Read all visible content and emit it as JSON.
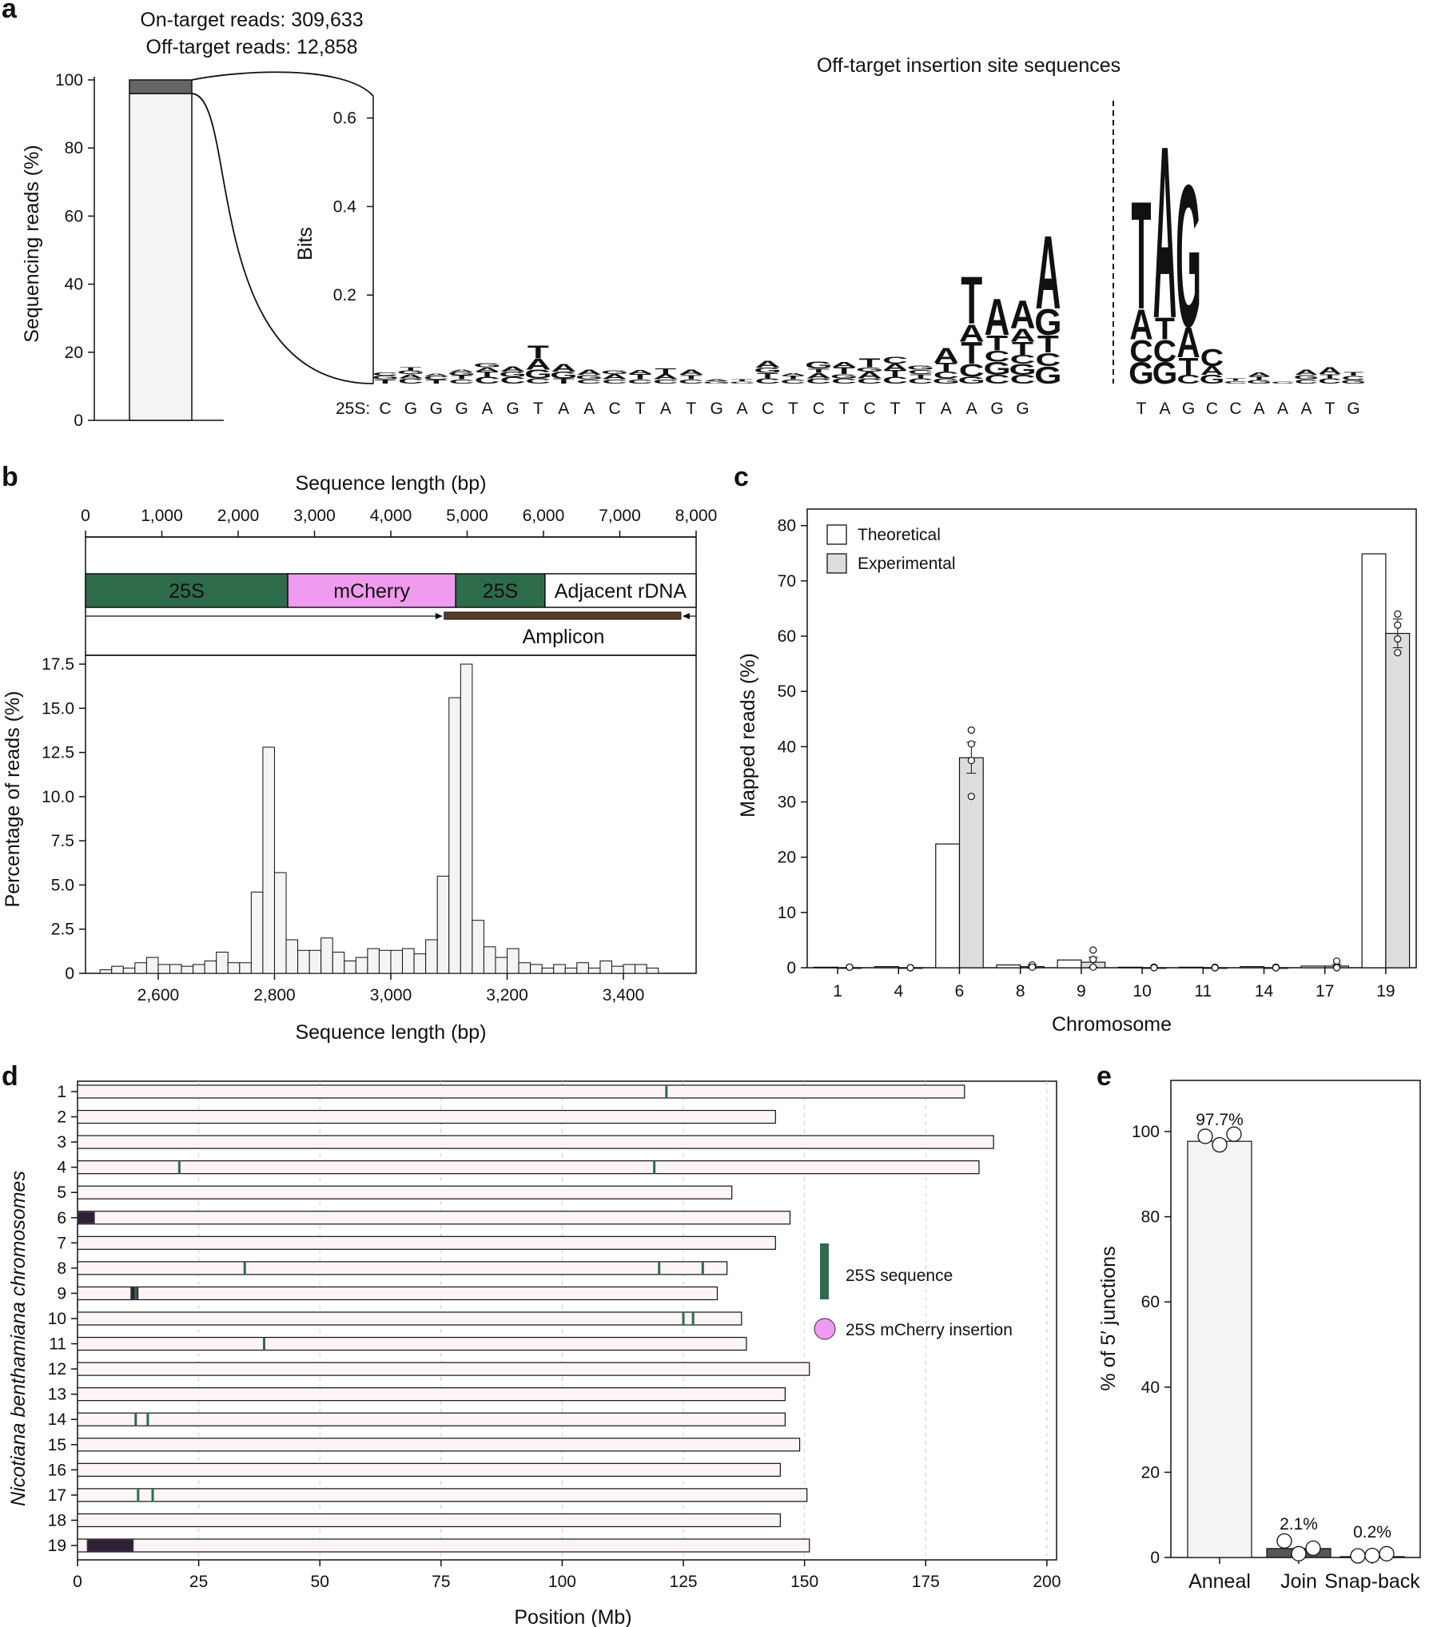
{
  "panels": {
    "a": {
      "letter": "a",
      "on_target_label": "On-target reads: 309,633",
      "off_target_label": "Off-target reads: 12,858",
      "logo_title": "Off-target insertion site sequences",
      "ref_prefix": "25S:",
      "colors": {
        "A": "#f7c24a",
        "C": "#5aa6d9",
        "G": "#4f61db",
        "T": "#ef6f6c"
      }
    },
    "b": {
      "letter": "b"
    },
    "c": {
      "letter": "c"
    },
    "d": {
      "letter": "d"
    },
    "e": {
      "letter": "e"
    }
  },
  "chart_data": [
    {
      "id": "a-stacked-bar",
      "type": "bar",
      "ylabel": "Sequencing reads (%)",
      "ylim": [
        0,
        100
      ],
      "yticks": [
        0,
        20,
        40,
        60,
        80,
        100
      ],
      "series": [
        {
          "name": "On-target reads",
          "values": [
            96.0
          ]
        },
        {
          "name": "Off-target reads",
          "values": [
            4.0
          ]
        }
      ],
      "colors": {
        "on_target": "#f4f4f4",
        "off_target": "#666666"
      }
    },
    {
      "id": "a-sequence-logo",
      "type": "logo",
      "title": "Off-target insertion site sequences",
      "ylabel": "Bits",
      "ylim": [
        0,
        0.65
      ],
      "yticks": [
        "0.2",
        "0.4",
        "0.6"
      ],
      "reference_left": [
        "C",
        "G",
        "G",
        "G",
        "A",
        "G",
        "T",
        "A",
        "A",
        "C",
        "T",
        "A",
        "T",
        "G",
        "A",
        "C",
        "T",
        "C",
        "T",
        "C",
        "T",
        "T",
        "A",
        "A",
        "G",
        "G"
      ],
      "reference_right": [
        "T",
        "A",
        "G",
        "C",
        "C",
        "A",
        "A",
        "A",
        "T",
        "G"
      ],
      "stacks_left": [
        [
          [
            "T",
            0.01
          ],
          [
            "G",
            0.008
          ],
          [
            "C",
            0.007
          ]
        ],
        [
          [
            "C",
            0.012
          ],
          [
            "A",
            0.01
          ],
          [
            "G",
            0.008
          ],
          [
            "T",
            0.007
          ]
        ],
        [
          [
            "T",
            0.009
          ],
          [
            "C",
            0.008
          ],
          [
            "A",
            0.006
          ]
        ],
        [
          [
            "C",
            0.01
          ],
          [
            "T",
            0.009
          ],
          [
            "G",
            0.007
          ],
          [
            "A",
            0.006
          ]
        ],
        [
          [
            "C",
            0.015
          ],
          [
            "T",
            0.012
          ],
          [
            "A",
            0.01
          ],
          [
            "G",
            0.01
          ]
        ],
        [
          [
            "C",
            0.015
          ],
          [
            "G",
            0.012
          ],
          [
            "A",
            0.012
          ]
        ],
        [
          [
            "C",
            0.012
          ],
          [
            "G",
            0.02
          ],
          [
            "A",
            0.025
          ],
          [
            "T",
            0.03
          ]
        ],
        [
          [
            "T",
            0.012
          ],
          [
            "G",
            0.015
          ],
          [
            "A",
            0.018
          ]
        ],
        [
          [
            "C",
            0.01
          ],
          [
            "G",
            0.01
          ],
          [
            "A",
            0.012
          ]
        ],
        [
          [
            "C",
            0.01
          ],
          [
            "A",
            0.012
          ],
          [
            "G",
            0.008
          ]
        ],
        [
          [
            "C",
            0.01
          ],
          [
            "T",
            0.012
          ],
          [
            "A",
            0.01
          ]
        ],
        [
          [
            "C",
            0.01
          ],
          [
            "A",
            0.012
          ],
          [
            "T",
            0.013
          ]
        ],
        [
          [
            "C",
            0.01
          ],
          [
            "T",
            0.01
          ],
          [
            "A",
            0.012
          ]
        ],
        [
          [
            "G",
            0.005
          ],
          [
            "A",
            0.005
          ]
        ],
        [
          [
            "C",
            0.005
          ],
          [
            "T",
            0.005
          ]
        ],
        [
          [
            "C",
            0.012
          ],
          [
            "T",
            0.012
          ],
          [
            "G",
            0.012
          ],
          [
            "A",
            0.015
          ]
        ],
        [
          [
            "C",
            0.01
          ],
          [
            "T",
            0.008
          ],
          [
            "A",
            0.006
          ]
        ],
        [
          [
            "C",
            0.012
          ],
          [
            "A",
            0.012
          ],
          [
            "T",
            0.01
          ],
          [
            "G",
            0.015
          ]
        ],
        [
          [
            "C",
            0.012
          ],
          [
            "G",
            0.01
          ],
          [
            "T",
            0.015
          ],
          [
            "A",
            0.012
          ]
        ],
        [
          [
            "C",
            0.012
          ],
          [
            "A",
            0.015
          ],
          [
            "G",
            0.01
          ],
          [
            "T",
            0.02
          ]
        ],
        [
          [
            "C",
            0.015
          ],
          [
            "T",
            0.015
          ],
          [
            "A",
            0.015
          ],
          [
            "C",
            0.015
          ]
        ],
        [
          [
            "C",
            0.012
          ],
          [
            "T",
            0.01
          ],
          [
            "C",
            0.01
          ],
          [
            "G",
            0.01
          ]
        ],
        [
          [
            "G",
            0.012
          ],
          [
            "C",
            0.015
          ],
          [
            "T",
            0.02
          ],
          [
            "A",
            0.035
          ]
        ],
        [
          [
            "G",
            0.015
          ],
          [
            "C",
            0.03
          ],
          [
            "T",
            0.05
          ],
          [
            "A",
            0.04
          ],
          [
            "T",
            0.11
          ]
        ],
        [
          [
            "C",
            0.02
          ],
          [
            "G",
            0.03
          ],
          [
            "C",
            0.025
          ],
          [
            "T",
            0.035
          ],
          [
            "A",
            0.085
          ]
        ],
        [
          [
            "C",
            0.02
          ],
          [
            "G",
            0.025
          ],
          [
            "C",
            0.02
          ],
          [
            "T",
            0.03
          ],
          [
            "A",
            0.03
          ],
          [
            "A",
            0.065
          ]
        ],
        [
          [
            "G",
            0.04
          ],
          [
            "C",
            0.03
          ],
          [
            "T",
            0.04
          ],
          [
            "G",
            0.06
          ],
          [
            "A",
            0.17
          ]
        ]
      ],
      "stacks_right": [
        [
          [
            "G",
            0.05
          ],
          [
            "C",
            0.05
          ],
          [
            "A",
            0.07
          ],
          [
            "T",
            0.25
          ]
        ],
        [
          [
            "G",
            0.05
          ],
          [
            "C",
            0.05
          ],
          [
            "T",
            0.05
          ],
          [
            "A",
            0.4
          ]
        ],
        [
          [
            "C",
            0.02
          ],
          [
            "T",
            0.04
          ],
          [
            "A",
            0.07
          ],
          [
            "G",
            0.33
          ]
        ],
        [
          [
            "G",
            0.02
          ],
          [
            "A",
            0.02
          ],
          [
            "C",
            0.04
          ]
        ],
        [
          [
            "C",
            0.006
          ],
          [
            "T",
            0.006
          ]
        ],
        [
          [
            "G",
            0.008
          ],
          [
            "T",
            0.008
          ],
          [
            "A",
            0.01
          ]
        ],
        [
          [
            "C",
            0.005
          ]
        ],
        [
          [
            "C",
            0.01
          ],
          [
            "G",
            0.01
          ],
          [
            "A",
            0.012
          ]
        ],
        [
          [
            "C",
            0.012
          ],
          [
            "T",
            0.01
          ],
          [
            "A",
            0.015
          ]
        ],
        [
          [
            "G",
            0.008
          ],
          [
            "C",
            0.01
          ],
          [
            "T",
            0.008
          ]
        ]
      ]
    },
    {
      "id": "b-construct",
      "type": "diagram",
      "xlabel": "Sequence length (bp)",
      "xlim": [
        0,
        8000
      ],
      "xticks": [
        "0",
        "1,000",
        "2,000",
        "3,000",
        "4,000",
        "5,000",
        "6,000",
        "7,000",
        "8,000"
      ],
      "segments": [
        {
          "label": "25S",
          "start": 0,
          "end": 2650,
          "color": "#2e6b4a",
          "text_color": "#ffffff"
        },
        {
          "label": "mCherry",
          "start": 2650,
          "end": 4850,
          "color": "#ef9bef",
          "text_color": "#111111"
        },
        {
          "label": "25S",
          "start": 4850,
          "end": 6020,
          "color": "#2e6b4a",
          "text_color": "#ffffff"
        },
        {
          "label": "Adjacent rDNA",
          "start": 6020,
          "end": 8000,
          "color": "#ffffff",
          "text_color": "#111111"
        }
      ],
      "amplicon": {
        "label": "Amplicon",
        "start": 4700,
        "end": 7800,
        "color": "#5b3a28"
      }
    },
    {
      "id": "b-histogram",
      "type": "bar",
      "xlabel": "Sequence length (bp)",
      "ylabel": "Percentage of reads (%)",
      "xlim": [
        2475,
        3525
      ],
      "ylim": [
        0,
        18
      ],
      "xticks": [
        {
          "value": 2600,
          "label": "2,600"
        },
        {
          "value": 2800,
          "label": "2,800"
        },
        {
          "value": 3000,
          "label": "3,000"
        },
        {
          "value": 3200,
          "label": "3,200"
        },
        {
          "value": 3400,
          "label": "3,400"
        }
      ],
      "yticks": [
        "0",
        "2.5",
        "5.0",
        "7.5",
        "10.0",
        "12.5",
        "15.0",
        "17.5"
      ],
      "bin_start": 2500,
      "bin_width": 20,
      "values": [
        0.2,
        0.4,
        0.3,
        0.6,
        0.9,
        0.5,
        0.5,
        0.4,
        0.5,
        0.7,
        1.2,
        0.6,
        0.6,
        4.6,
        12.8,
        5.7,
        1.9,
        1.3,
        1.3,
        2.0,
        1.2,
        0.7,
        0.9,
        1.4,
        1.3,
        1.3,
        1.4,
        1.1,
        1.9,
        5.5,
        15.6,
        17.5,
        3.0,
        1.5,
        0.9,
        1.4,
        0.6,
        0.5,
        0.3,
        0.5,
        0.3,
        0.6,
        0.3,
        0.7,
        0.4,
        0.5,
        0.5,
        0.3
      ],
      "bar_color": "#f4f4f4"
    },
    {
      "id": "c-bar",
      "type": "bar",
      "xlabel": "Chromosome",
      "ylabel": "Mapped reads (%)",
      "ylim": [
        0,
        83
      ],
      "yticks": [
        0,
        10,
        20,
        30,
        40,
        50,
        60,
        70,
        80
      ],
      "categories": [
        "1",
        "4",
        "6",
        "8",
        "9",
        "10",
        "11",
        "14",
        "17",
        "19"
      ],
      "legend_position": "top-left",
      "series": [
        {
          "name": "Theoretical",
          "values": [
            0.1,
            0.2,
            22.4,
            0.5,
            1.4,
            0.1,
            0.1,
            0.2,
            0.3,
            74.9
          ],
          "color": "#ffffff"
        },
        {
          "name": "Experimental",
          "values": [
            0.0,
            0.0,
            38.0,
            0.2,
            1.0,
            0.0,
            0.0,
            0.0,
            0.3,
            60.5
          ],
          "color": "#dddddd"
        }
      ],
      "error_sd": [
        0,
        0,
        2.8,
        0.3,
        0.9,
        0,
        0,
        0,
        0.3,
        2.6
      ],
      "replicates": [
        [
          0.1,
          0.1,
          0.1
        ],
        [
          0.0,
          0.0,
          0.0
        ],
        [
          43.0,
          40.5,
          37.5,
          31.0
        ],
        [
          0.2,
          0.5,
          0.1
        ],
        [
          3.2,
          1.5,
          0.1
        ],
        [
          0.1,
          0.1,
          0.0
        ],
        [
          0.0,
          0.1,
          0.0
        ],
        [
          0.1,
          0.0,
          0.0
        ],
        [
          1.2,
          0.1,
          0.0
        ],
        [
          64.0,
          62.0,
          59.5,
          57.0
        ]
      ]
    },
    {
      "id": "d-chromosomes",
      "type": "diagram",
      "ylabel": "Nicotiana benthamiana chromosomes",
      "xlabel": "Position (Mb)",
      "xlim": [
        0,
        202
      ],
      "xticks": [
        0,
        25,
        50,
        75,
        100,
        125,
        150,
        175,
        200
      ],
      "chromosomes": [
        {
          "name": "1",
          "length": 183,
          "sites_25s": [
            121.5
          ],
          "insertions": [],
          "cluster": null
        },
        {
          "name": "2",
          "length": 144,
          "sites_25s": [],
          "insertions": [],
          "cluster": null
        },
        {
          "name": "3",
          "length": 189,
          "sites_25s": [],
          "insertions": [],
          "cluster": null
        },
        {
          "name": "4",
          "length": 186,
          "sites_25s": [
            21,
            119
          ],
          "insertions": [],
          "cluster": null
        },
        {
          "name": "5",
          "length": 135,
          "sites_25s": [],
          "insertions": [],
          "cluster": null
        },
        {
          "name": "6",
          "length": 147,
          "sites_25s": [],
          "insertions": [],
          "cluster": [
            0,
            3.5
          ]
        },
        {
          "name": "7",
          "length": 144,
          "sites_25s": [],
          "insertions": [],
          "cluster": null
        },
        {
          "name": "8",
          "length": 134,
          "sites_25s": [
            34.5,
            120,
            129
          ],
          "insertions": [],
          "cluster": null
        },
        {
          "name": "9",
          "length": 132,
          "sites_25s": [
            12
          ],
          "insertions": [],
          "cluster": [
            11,
            12.5
          ]
        },
        {
          "name": "10",
          "length": 137,
          "sites_25s": [
            125,
            127
          ],
          "insertions": [],
          "cluster": null
        },
        {
          "name": "11",
          "length": 138,
          "sites_25s": [
            38.5
          ],
          "insertions": [],
          "cluster": null
        },
        {
          "name": "12",
          "length": 151,
          "sites_25s": [],
          "insertions": [],
          "cluster": null
        },
        {
          "name": "13",
          "length": 146,
          "sites_25s": [],
          "insertions": [],
          "cluster": null
        },
        {
          "name": "14",
          "length": 146,
          "sites_25s": [
            12,
            14.5
          ],
          "insertions": [],
          "cluster": null
        },
        {
          "name": "15",
          "length": 149,
          "sites_25s": [],
          "insertions": [],
          "cluster": null
        },
        {
          "name": "16",
          "length": 145,
          "sites_25s": [],
          "insertions": [],
          "cluster": null
        },
        {
          "name": "17",
          "length": 150.5,
          "sites_25s": [
            12.5,
            15.5
          ],
          "insertions": [],
          "cluster": null
        },
        {
          "name": "18",
          "length": 145,
          "sites_25s": [],
          "insertions": [],
          "cluster": null
        },
        {
          "name": "19",
          "length": 151,
          "sites_25s": [],
          "insertions": [],
          "cluster": [
            2,
            11.5
          ]
        }
      ],
      "legend": [
        {
          "label": "25S sequence",
          "color": "#2e6b4a",
          "symbol": "bar"
        },
        {
          "label": "25S mCherry insertion",
          "color": "#ef9bef",
          "symbol": "circle"
        }
      ]
    },
    {
      "id": "e-bar",
      "type": "bar",
      "ylabel": "% of 5′ junctions",
      "ylim": [
        0,
        112
      ],
      "yticks": [
        0,
        20,
        40,
        60,
        80,
        100
      ],
      "categories": [
        "Anneal",
        "Join",
        "Snap-back"
      ],
      "values": [
        97.7,
        2.1,
        0.2
      ],
      "data_labels": [
        "97.7%",
        "2.1%",
        "0.2%"
      ],
      "colors": [
        "#f4f4f4",
        "#555555",
        "#555555"
      ],
      "replicates": [
        [
          98.5,
          96.5,
          99.0
        ],
        [
          3.5,
          0.5,
          1.8
        ],
        [
          0.0,
          0.1,
          0.5
        ]
      ]
    }
  ]
}
